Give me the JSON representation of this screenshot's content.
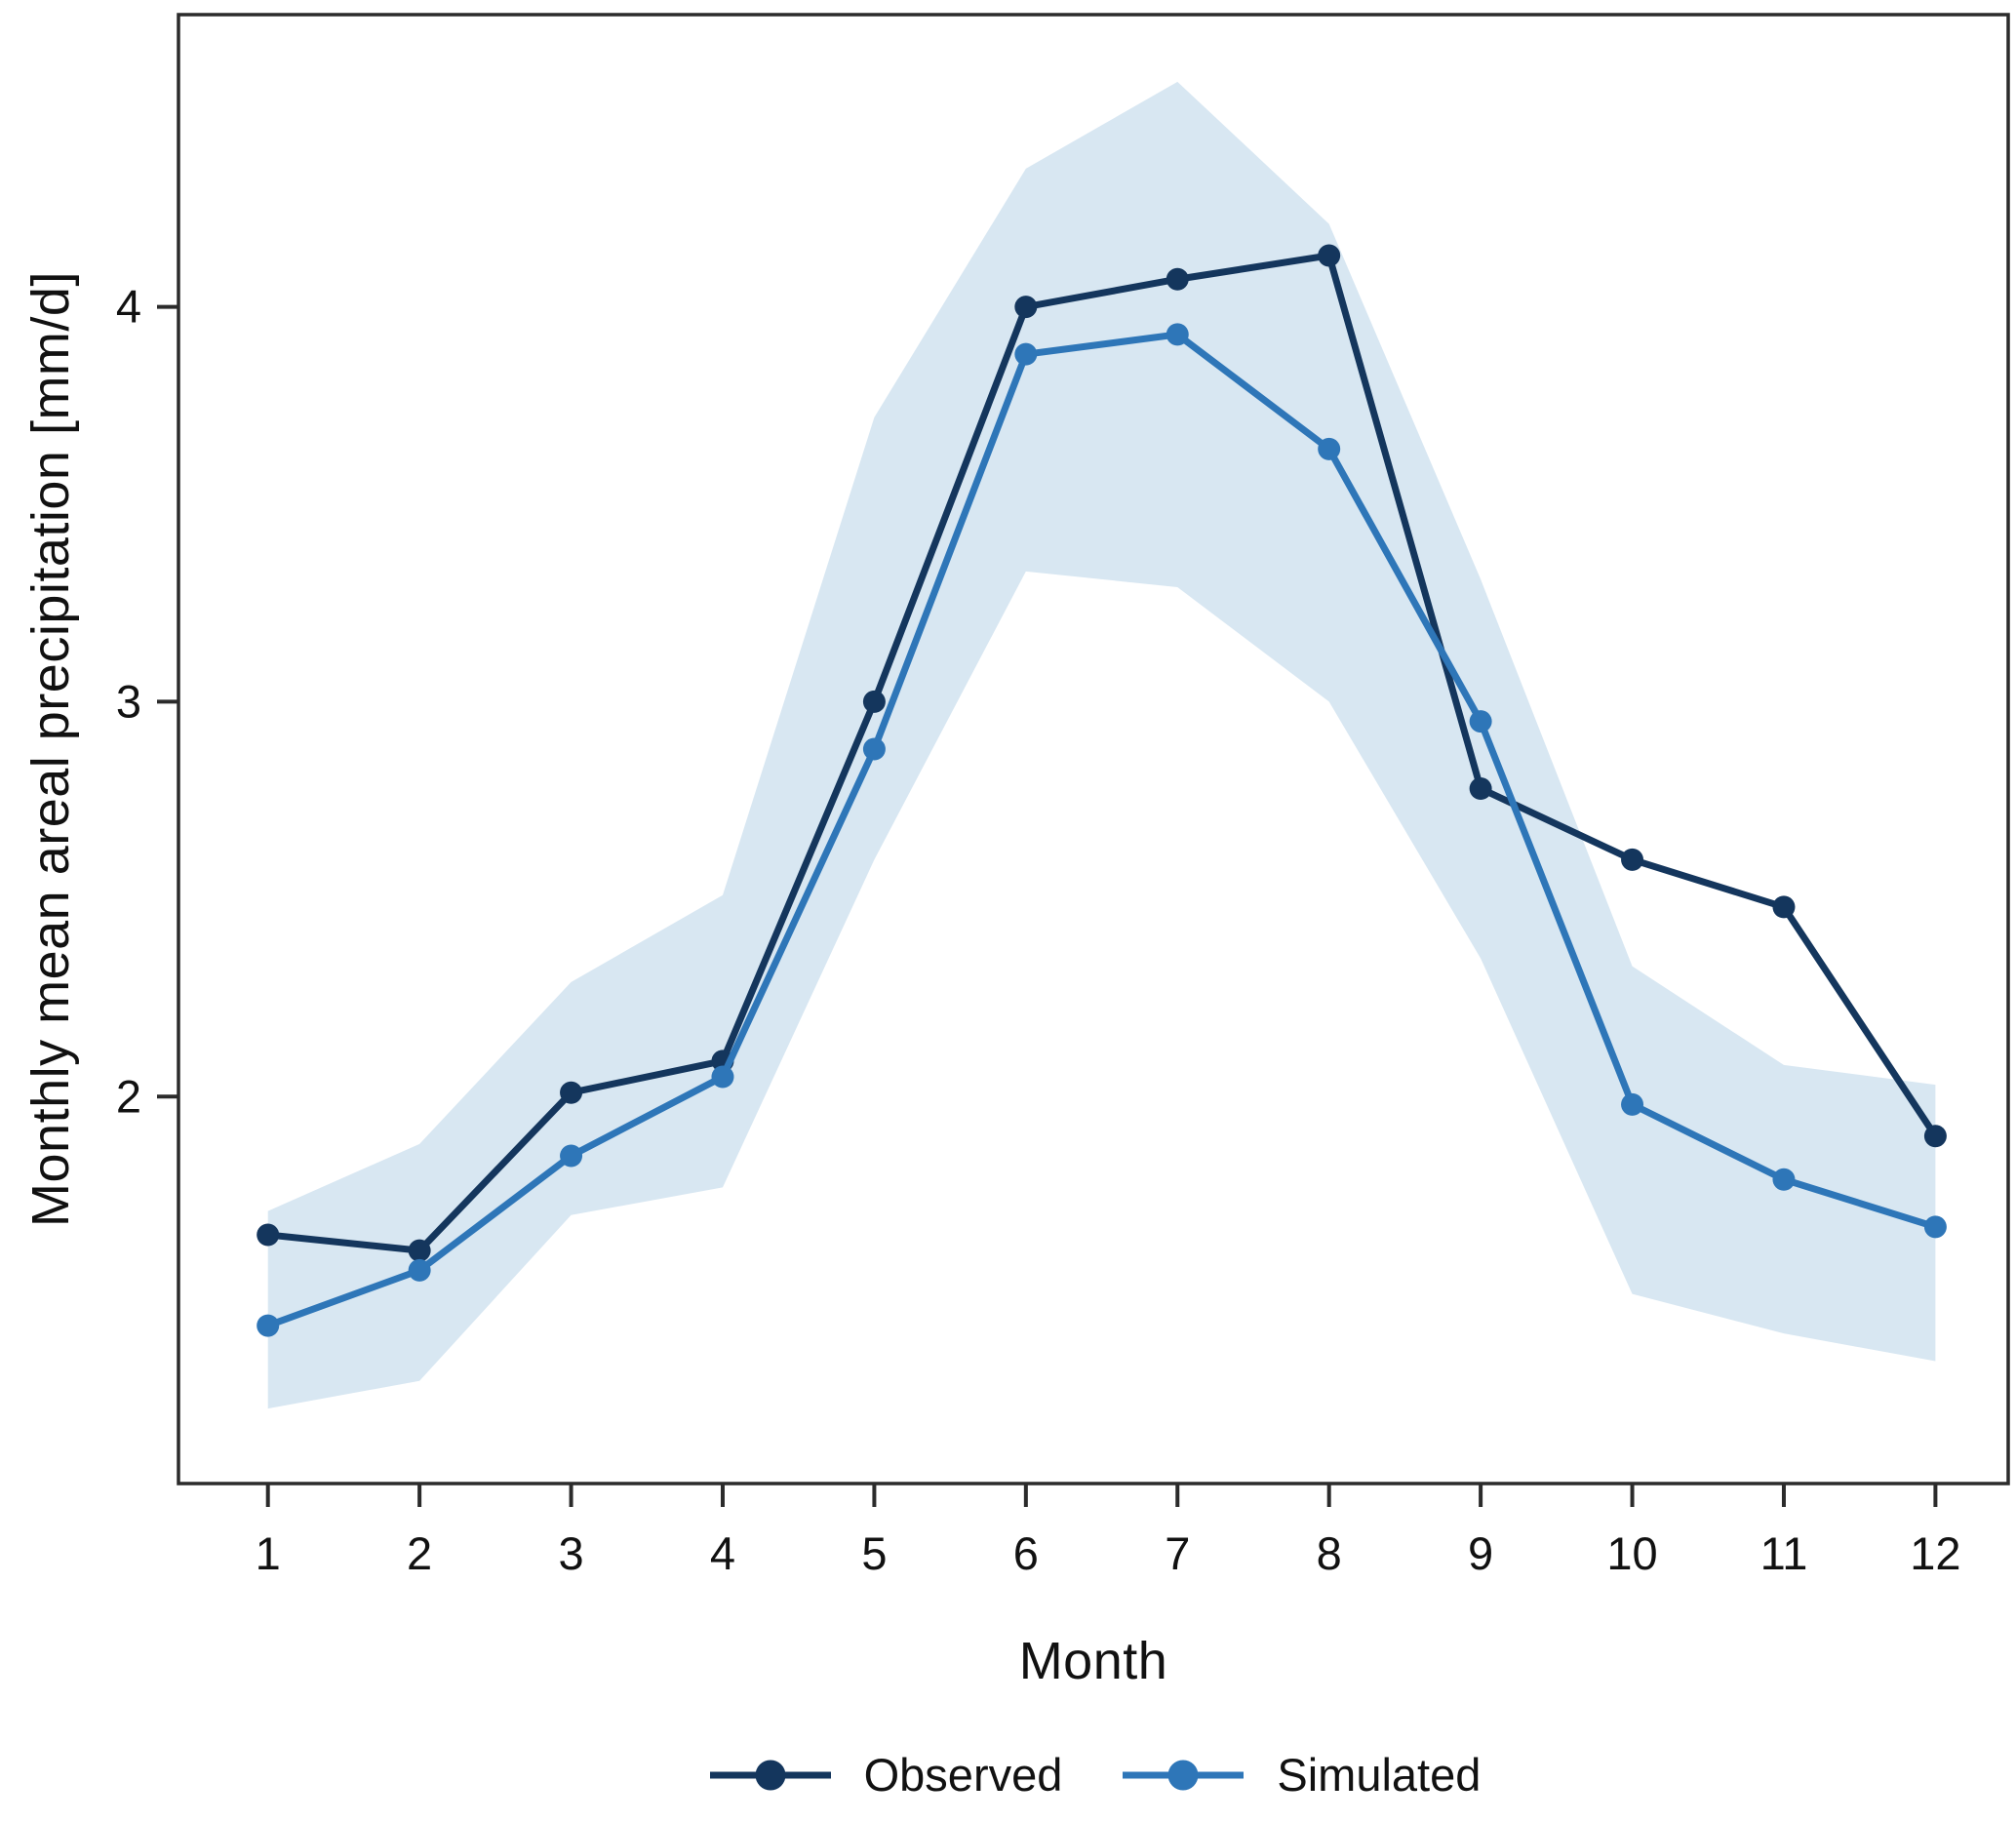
{
  "chart_data": {
    "type": "line",
    "title": "",
    "xlabel": "Month",
    "ylabel": "Monthly mean areal precipitation [mm/d]",
    "x": [
      1,
      2,
      3,
      4,
      5,
      6,
      7,
      8,
      9,
      10,
      11,
      12
    ],
    "x_tick_labels": [
      "1",
      "2",
      "3",
      "4",
      "5",
      "6",
      "7",
      "8",
      "9",
      "10",
      "11",
      "12"
    ],
    "y_ticks": [
      2,
      3,
      4
    ],
    "y_tick_labels": [
      "2",
      "3",
      "4"
    ],
    "xlim": [
      0.41,
      12.48
    ],
    "ylim": [
      1.02,
      4.74
    ],
    "grid": false,
    "legend_position": "bottom",
    "series": [
      {
        "name": "Observed",
        "color": "#14365D",
        "marker": "circle",
        "values": [
          1.65,
          1.61,
          2.01,
          2.09,
          3.0,
          4.0,
          4.07,
          4.13,
          2.78,
          2.6,
          2.48,
          1.9
        ]
      },
      {
        "name": "Simulated",
        "color": "#2E76B8",
        "marker": "circle",
        "values": [
          1.42,
          1.56,
          1.85,
          2.05,
          2.88,
          3.88,
          3.93,
          3.64,
          2.95,
          1.98,
          1.79,
          1.67
        ]
      }
    ],
    "band": {
      "name": "simulation-uncertainty-band",
      "color": "#D8E7F2",
      "low": [
        1.21,
        1.28,
        1.7,
        1.77,
        2.6,
        3.33,
        3.29,
        3.0,
        2.35,
        1.5,
        1.4,
        1.33
      ],
      "high": [
        1.71,
        1.88,
        2.29,
        2.51,
        3.72,
        4.35,
        4.57,
        4.21,
        3.31,
        2.33,
        2.08,
        2.03
      ]
    }
  },
  "style": {
    "frame_color": "#2B2B2B",
    "tick_color": "#2B2B2B",
    "text_color": "#111111",
    "background": "#FFFFFF",
    "tick_label_size": 47,
    "line_width": 7,
    "point_radius": 11.5
  }
}
